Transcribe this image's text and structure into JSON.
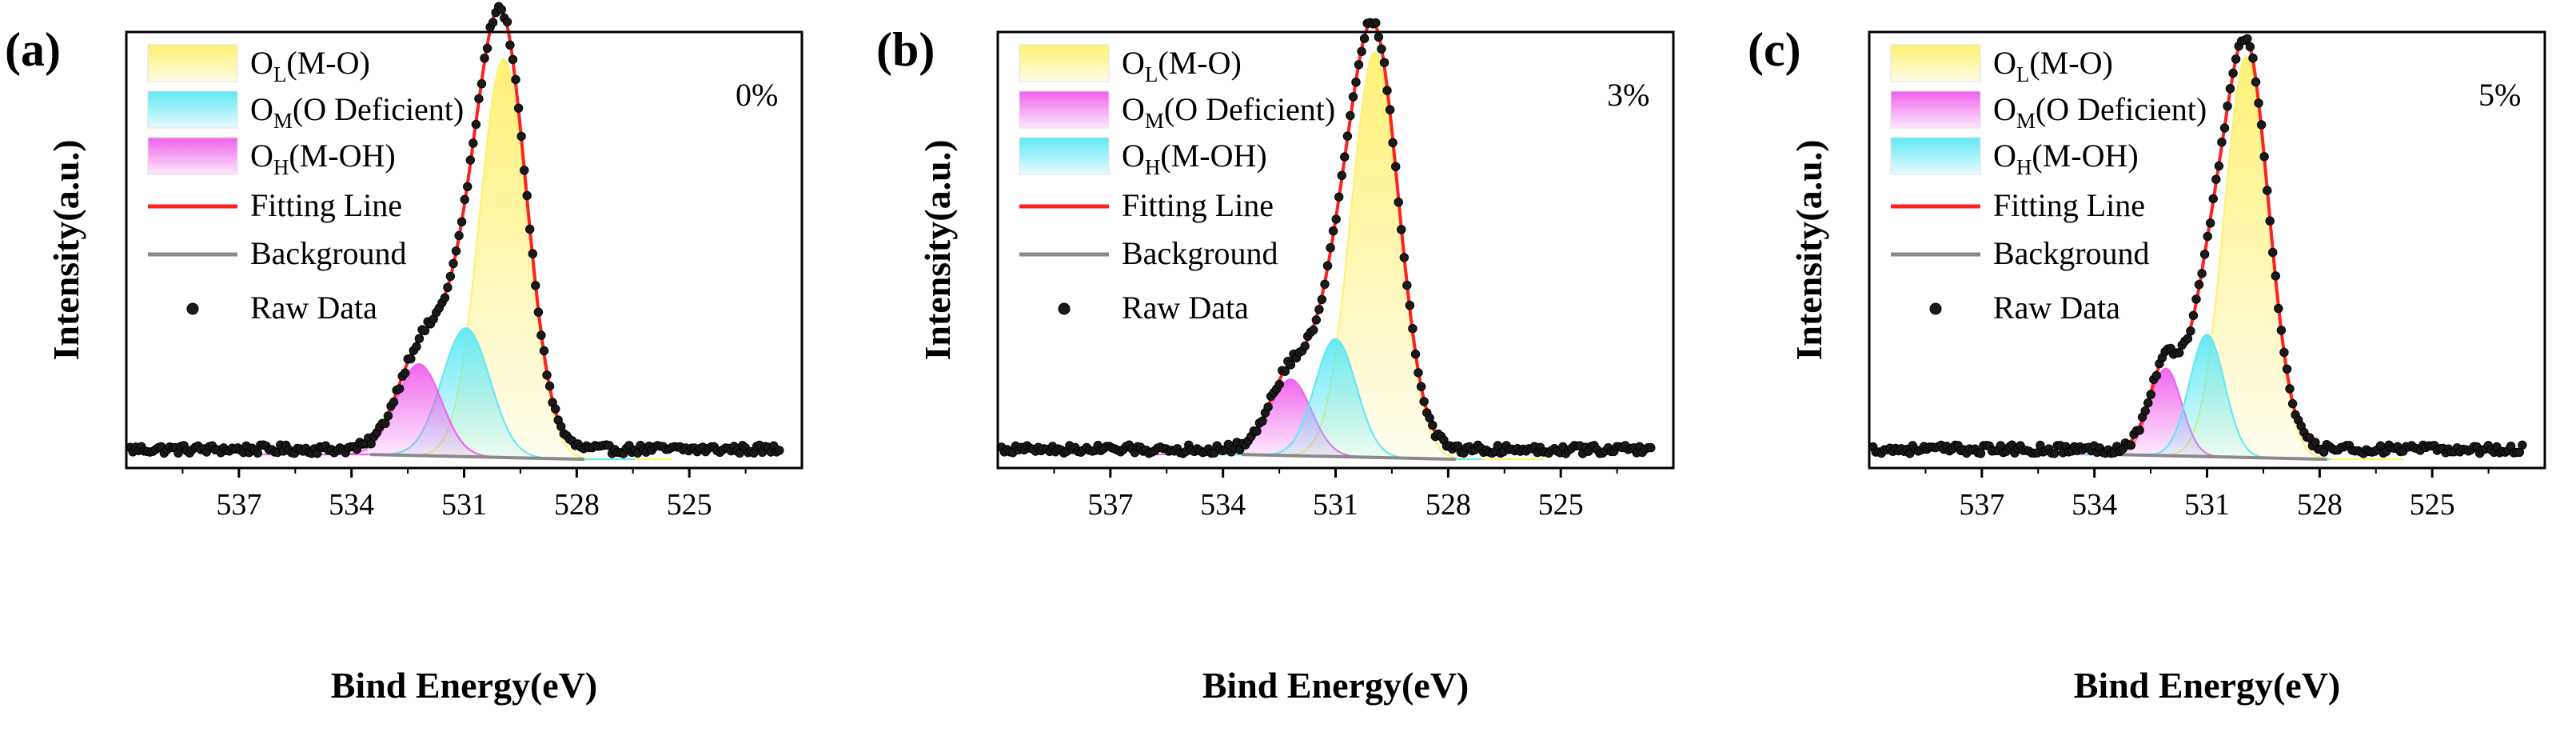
{
  "chart_data": [
    {
      "type": "line",
      "panel_label": "(a)",
      "concentration": "0%",
      "xlabel": "Bind Energy(eV)",
      "ylabel": "Intensity(a.u.)",
      "xlim": [
        540,
        522
      ],
      "ylim": [
        0,
        100
      ],
      "x_ticks": [
        537,
        534,
        531,
        528,
        525
      ],
      "x_tick_labels": [
        "537",
        "534",
        "531",
        "528",
        "525"
      ],
      "baseline": 4.3,
      "background_line": {
        "x": [
          533.5,
          527.8
        ],
        "y": [
          3.1,
          2.0
        ]
      },
      "peaks": [
        {
          "name": "O_L",
          "main": "O",
          "sub": "L",
          "label_suffix": "(M-O)",
          "center": 529.95,
          "height": 91.5,
          "fwhm": 1.5,
          "color": "#fff06e"
        },
        {
          "name": "O_M",
          "main": "O",
          "sub": "M",
          "label_suffix": "(O Deficient)",
          "center": 530.95,
          "height": 29.5,
          "fwhm": 1.5,
          "color": "#5fe8f5"
        },
        {
          "name": "O_H",
          "main": "O",
          "sub": "H",
          "label_suffix": "(M-OH)",
          "center": 532.2,
          "height": 21.0,
          "fwhm": 1.4,
          "color": "#f060ec"
        }
      ],
      "legend": {
        "fitting_line": "Fitting Line",
        "background": "Background",
        "raw_data": "Raw Data"
      },
      "legend_fill_order": [
        "O_L",
        "O_M",
        "O_H"
      ],
      "line_colors": {
        "fit": "#ff2020",
        "background": "#8a8a8a",
        "raw": "#000000"
      }
    },
    {
      "type": "line",
      "panel_label": "(b)",
      "concentration": "3%",
      "xlabel": "Bind Energy(eV)",
      "ylabel": "Intensity(a.u.)",
      "xlim": [
        540,
        522
      ],
      "ylim": [
        0,
        100
      ],
      "x_ticks": [
        537,
        534,
        531,
        528,
        525
      ],
      "x_tick_labels": [
        "537",
        "534",
        "531",
        "528",
        "525"
      ],
      "baseline": 4.3,
      "background_line": {
        "x": [
          533.5,
          527.8
        ],
        "y": [
          3.1,
          2.0
        ]
      },
      "peaks": [
        {
          "name": "O_L",
          "main": "O",
          "sub": "L",
          "label_suffix": "(M-O)",
          "center": 529.95,
          "height": 93.0,
          "fwhm": 1.5,
          "color": "#fff06e"
        },
        {
          "name": "O_M",
          "main": "O",
          "sub": "M",
          "label_suffix": "(O Deficient)",
          "center": 532.2,
          "height": 17.5,
          "fwhm": 1.3,
          "color": "#f060ec"
        },
        {
          "name": "O_H",
          "main": "O",
          "sub": "H",
          "label_suffix": "(M-OH)",
          "center": 531.0,
          "height": 27.0,
          "fwhm": 1.3,
          "color": "#5fe8f5"
        }
      ],
      "legend": {
        "fitting_line": "Fitting Line",
        "background": "Background",
        "raw_data": "Raw Data"
      },
      "legend_fill_order": [
        "O_L",
        "O_M",
        "O_H"
      ],
      "line_colors": {
        "fit": "#ff2020",
        "background": "#8a8a8a",
        "raw": "#000000"
      }
    },
    {
      "type": "line",
      "panel_label": "(c)",
      "concentration": "5%",
      "xlabel": "Bind Energy(eV)",
      "ylabel": "Intensity(a.u.)",
      "xlim": [
        540,
        522
      ],
      "ylim": [
        0,
        100
      ],
      "x_ticks": [
        537,
        534,
        531,
        528,
        525
      ],
      "x_tick_labels": [
        "537",
        "534",
        "531",
        "528",
        "525"
      ],
      "baseline": 4.3,
      "background_line": {
        "x": [
          533.5,
          527.8
        ],
        "y": [
          3.1,
          2.0
        ]
      },
      "peaks": [
        {
          "name": "O_L",
          "main": "O",
          "sub": "L",
          "label_suffix": "(M-O)",
          "center": 529.95,
          "height": 92.0,
          "fwhm": 1.4,
          "color": "#fff06e"
        },
        {
          "name": "O_M",
          "main": "O",
          "sub": "M",
          "label_suffix": "(O Deficient)",
          "center": 532.1,
          "height": 20.0,
          "fwhm": 1.0,
          "color": "#f060ec"
        },
        {
          "name": "O_H",
          "main": "O",
          "sub": "H",
          "label_suffix": "(M-OH)",
          "center": 531.0,
          "height": 28.0,
          "fwhm": 1.1,
          "color": "#5fe8f5"
        }
      ],
      "legend": {
        "fitting_line": "Fitting Line",
        "background": "Background",
        "raw_data": "Raw Data"
      },
      "legend_fill_order": [
        "O_L",
        "O_M",
        "O_H"
      ],
      "line_colors": {
        "fit": "#ff2020",
        "background": "#8a8a8a",
        "raw": "#000000"
      }
    }
  ]
}
